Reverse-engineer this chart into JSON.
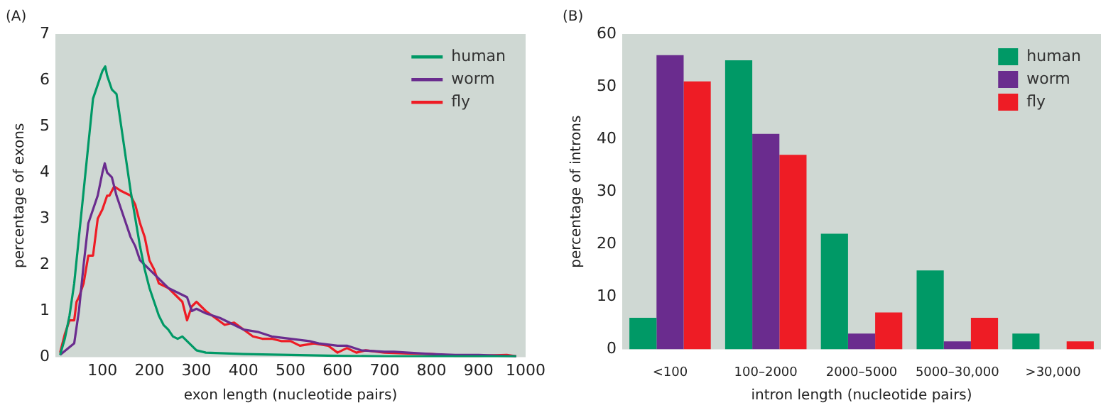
{
  "chart_data": [
    {
      "type": "line",
      "title": "(A)",
      "xlabel": "exon length (nucleotide pairs)",
      "ylabel": "percentage of exons",
      "xlim": [
        0,
        1000
      ],
      "xticks": [
        100,
        200,
        300,
        400,
        500,
        600,
        700,
        800,
        900,
        1000
      ],
      "ylim": [
        0,
        7
      ],
      "yticks": [
        0,
        1,
        2,
        3,
        4,
        5,
        6,
        7
      ],
      "grid": false,
      "legend": "top right",
      "marker": "none",
      "line_style": "solid",
      "series": [
        {
          "name": "human",
          "color": "#009966",
          "x": [
            10,
            20,
            30,
            40,
            50,
            60,
            70,
            80,
            90,
            100,
            106,
            110,
            120,
            130,
            140,
            150,
            160,
            170,
            180,
            190,
            200,
            210,
            220,
            230,
            240,
            250,
            260,
            270,
            280,
            290,
            300,
            320,
            400,
            500,
            600,
            700,
            800,
            900,
            980
          ],
          "values": [
            0.05,
            0.4,
            0.9,
            1.6,
            2.6,
            3.6,
            4.6,
            5.6,
            5.9,
            6.2,
            6.3,
            6.1,
            5.8,
            5.7,
            5.0,
            4.3,
            3.6,
            3.0,
            2.4,
            1.9,
            1.5,
            1.2,
            0.9,
            0.7,
            0.6,
            0.45,
            0.4,
            0.45,
            0.35,
            0.25,
            0.15,
            0.1,
            0.07,
            0.05,
            0.03,
            0.02,
            0.02,
            0.02,
            0.02
          ]
        },
        {
          "name": "worm",
          "color": "#6a2c8e",
          "x": [
            10,
            40,
            50,
            60,
            70,
            80,
            90,
            100,
            105,
            110,
            120,
            130,
            140,
            150,
            160,
            170,
            180,
            190,
            200,
            220,
            240,
            260,
            280,
            290,
            300,
            320,
            350,
            370,
            400,
            430,
            460,
            500,
            540,
            560,
            600,
            620,
            650,
            700,
            720,
            750,
            800,
            850,
            900,
            980
          ],
          "values": [
            0.05,
            0.3,
            1.0,
            2.0,
            2.9,
            3.2,
            3.5,
            4.0,
            4.2,
            4.0,
            3.9,
            3.5,
            3.2,
            2.9,
            2.6,
            2.4,
            2.1,
            2.0,
            1.9,
            1.7,
            1.5,
            1.4,
            1.3,
            1.0,
            1.05,
            0.95,
            0.85,
            0.75,
            0.6,
            0.55,
            0.45,
            0.4,
            0.35,
            0.3,
            0.25,
            0.25,
            0.15,
            0.12,
            0.12,
            0.1,
            0.07,
            0.05,
            0.05,
            0.02
          ]
        },
        {
          "name": "fly",
          "color": "#ee1c25",
          "x": [
            10,
            20,
            30,
            40,
            45,
            50,
            60,
            70,
            80,
            90,
            100,
            110,
            115,
            125,
            140,
            160,
            170,
            180,
            190,
            200,
            210,
            220,
            240,
            260,
            270,
            280,
            290,
            300,
            320,
            340,
            360,
            380,
            400,
            420,
            440,
            460,
            480,
            500,
            520,
            550,
            580,
            600,
            620,
            640,
            660,
            700,
            750,
            800,
            850,
            900,
            960,
            980
          ],
          "values": [
            0.1,
            0.5,
            0.8,
            0.8,
            1.2,
            1.3,
            1.6,
            2.2,
            2.2,
            3.0,
            3.2,
            3.5,
            3.5,
            3.7,
            3.6,
            3.5,
            3.3,
            2.9,
            2.6,
            2.1,
            1.9,
            1.6,
            1.5,
            1.3,
            1.2,
            0.8,
            1.1,
            1.2,
            1.0,
            0.85,
            0.7,
            0.75,
            0.6,
            0.45,
            0.4,
            0.4,
            0.35,
            0.35,
            0.25,
            0.3,
            0.25,
            0.1,
            0.2,
            0.1,
            0.15,
            0.1,
            0.08,
            0.07,
            0.03,
            0.03,
            0.05,
            0.02
          ]
        }
      ]
    },
    {
      "type": "bar",
      "title": "(B)",
      "xlabel": "intron length (nucleotide pairs)",
      "ylabel": "percentage of introns",
      "categories": [
        "<100",
        "100–2000",
        "2000–5000",
        "5000–30,000",
        ">30,000"
      ],
      "ylim": [
        0,
        60
      ],
      "yticks": [
        0,
        10,
        20,
        30,
        40,
        50,
        60
      ],
      "grid": false,
      "legend": "top right",
      "series": [
        {
          "name": "human",
          "color": "#009966",
          "values": [
            6,
            55,
            22,
            15,
            3
          ]
        },
        {
          "name": "worm",
          "color": "#6a2c8e",
          "values": [
            56,
            41,
            3,
            1.5,
            0
          ]
        },
        {
          "name": "fly",
          "color": "#ee1c25",
          "values": [
            51,
            37,
            7,
            6,
            1.5
          ]
        }
      ]
    }
  ]
}
